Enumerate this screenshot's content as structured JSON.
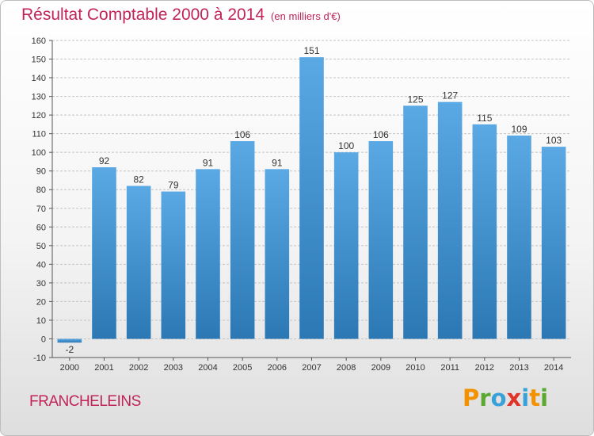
{
  "header": {
    "title": "Résultat Comptable 2000 à 2014",
    "unit": "(en milliers d'€)"
  },
  "footer": {
    "commune": "FRANCHELEINS",
    "logo_text": "Proxiti",
    "logo_colors": [
      "#f39200",
      "#5aa832",
      "#3aa0d8",
      "#e0342a",
      "#3aa0d8",
      "#f39200",
      "#5aa832"
    ]
  },
  "colors": {
    "title": "#c0245a",
    "bar_top": "#5aa8e4",
    "bar_bottom": "#2b78b4"
  },
  "chart_data": {
    "type": "bar",
    "title": "Résultat Comptable 2000 à 2014",
    "xlabel": "",
    "ylabel": "",
    "categories": [
      "2000",
      "2001",
      "2002",
      "2003",
      "2004",
      "2005",
      "2006",
      "2007",
      "2008",
      "2009",
      "2010",
      "2011",
      "2012",
      "2013",
      "2014"
    ],
    "values": [
      -2,
      92,
      82,
      79,
      91,
      106,
      91,
      151,
      100,
      106,
      125,
      127,
      115,
      109,
      103
    ],
    "ylim": [
      -10,
      160
    ],
    "yticks": [
      -10,
      0,
      10,
      20,
      30,
      40,
      50,
      60,
      70,
      80,
      90,
      100,
      110,
      120,
      130,
      140,
      150,
      160
    ],
    "grid": true,
    "data_labels": true
  }
}
